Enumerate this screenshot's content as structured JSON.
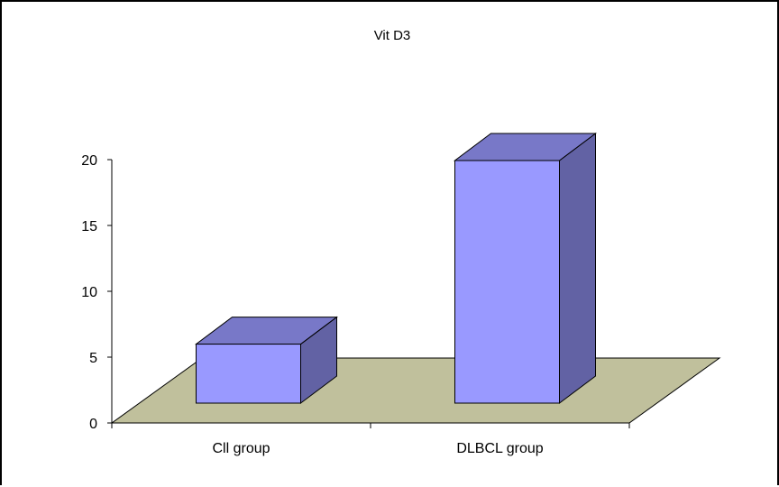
{
  "chart_data": {
    "type": "bar",
    "style": "3d",
    "title": "Vit D3",
    "xlabel": "",
    "ylabel": "",
    "categories": [
      "Cll group",
      "DLBCL group"
    ],
    "values": [
      4.5,
      18.5
    ],
    "yticks": [
      0,
      5,
      10,
      15,
      20
    ],
    "ylim": [
      0,
      20
    ],
    "grid": false,
    "legend": "none",
    "colors": {
      "bar_front": "#9999FF",
      "bar_top": "#7878C8",
      "bar_side": "#6262A4",
      "floor": "#C0C09C",
      "outline": "#000000"
    }
  }
}
